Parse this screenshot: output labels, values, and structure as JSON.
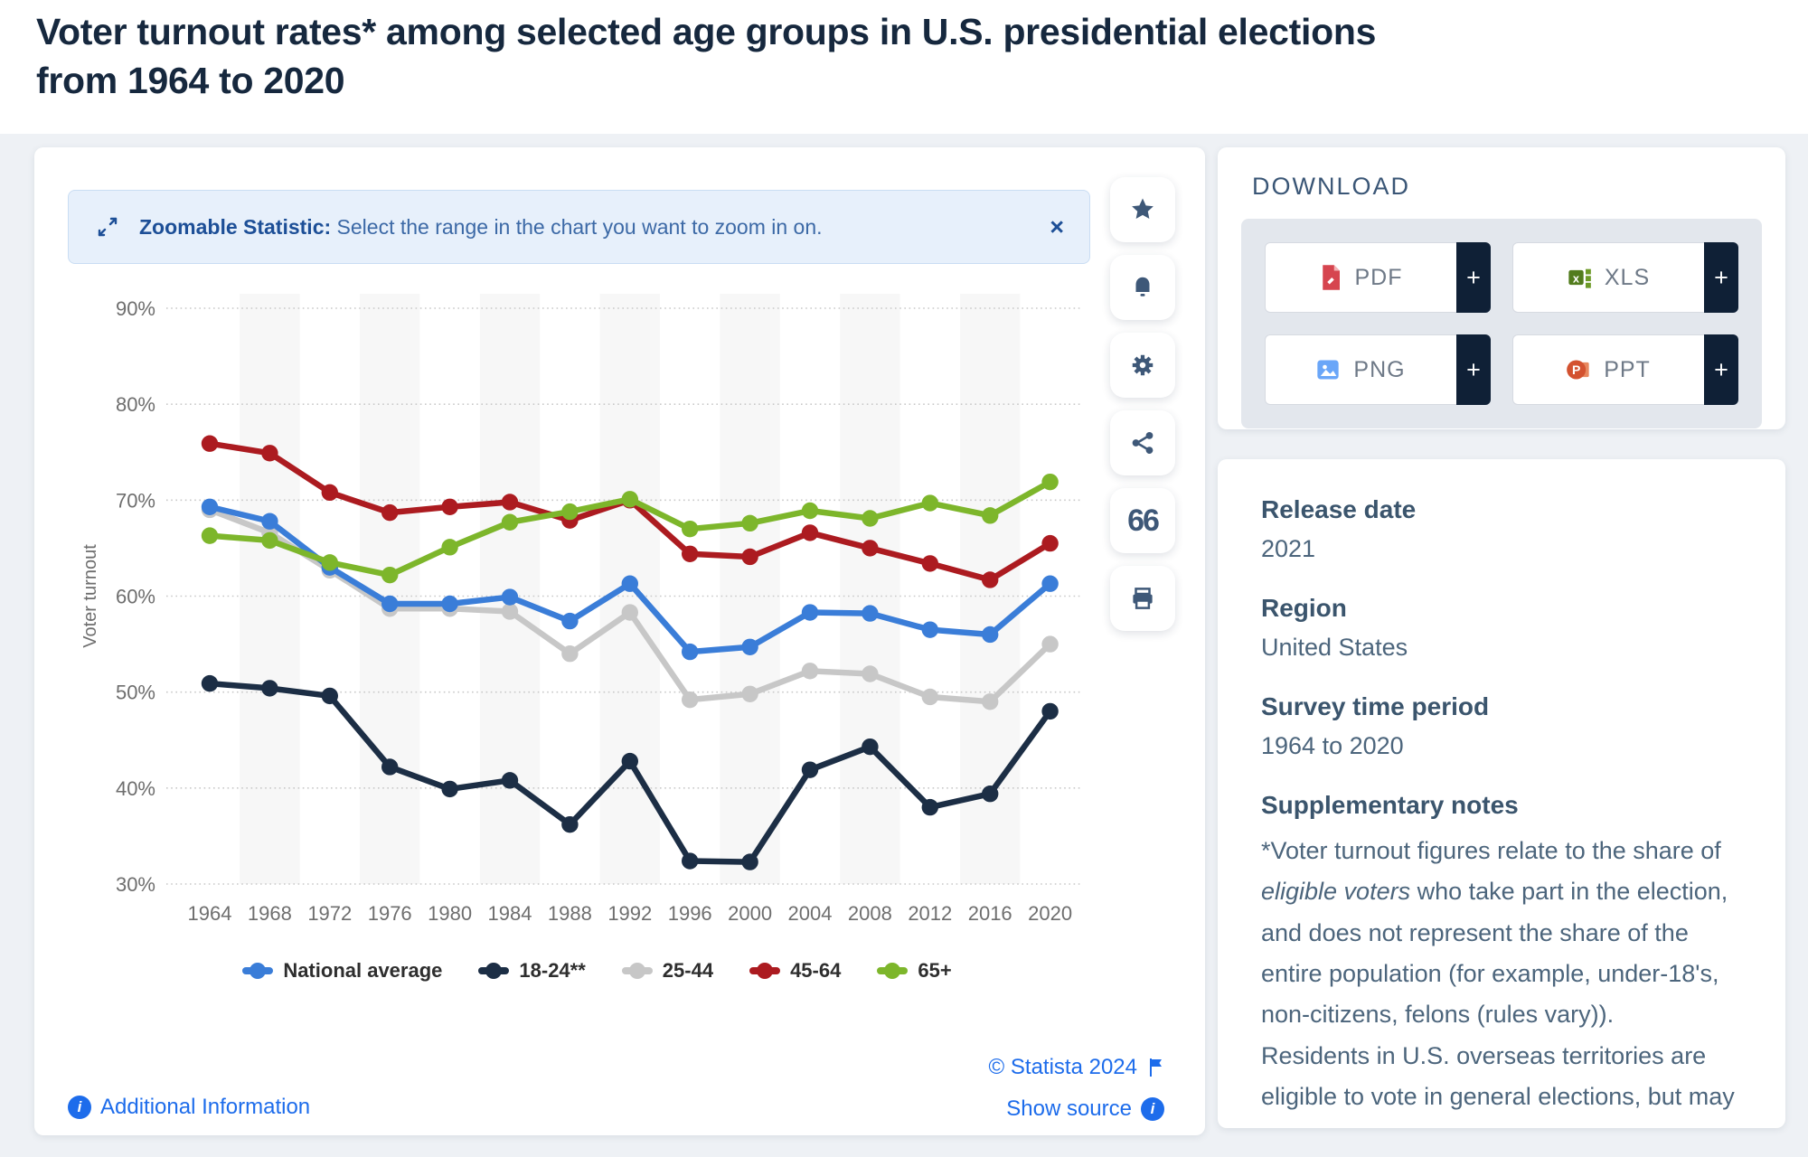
{
  "title": {
    "line1": "Voter turnout rates* among selected age groups in U.S. presidential elections",
    "line2": "from 1964 to 2020"
  },
  "banner": {
    "icon": "zoom-range-icon",
    "bold": "Zoomable Statistic:",
    "text": " Select the range in the chart you want to zoom in on.",
    "close": "×"
  },
  "chart_data": {
    "type": "line",
    "title": "Voter turnout rates among selected age groups in U.S. presidential elections from 1964 to 2020",
    "xlabel": "",
    "ylabel": "Voter turnout",
    "ylim": [
      30,
      90
    ],
    "yticks": [
      90,
      80,
      70,
      60,
      50,
      40,
      30
    ],
    "ytick_suffix": "%",
    "grid": "horizontal-dotted",
    "legend_position": "bottom",
    "shaded_years": [
      1968,
      1976,
      1984,
      1992,
      2000,
      2008,
      2016
    ],
    "categories": [
      1964,
      1968,
      1972,
      1976,
      1980,
      1984,
      1988,
      1992,
      1996,
      2000,
      2004,
      2008,
      2012,
      2016,
      2020
    ],
    "series": [
      {
        "name": "National average",
        "color": "#3a7dd8",
        "values": [
          69.3,
          67.8,
          63.0,
          59.2,
          59.2,
          59.9,
          57.4,
          61.3,
          54.2,
          54.7,
          58.3,
          58.2,
          56.5,
          56.0,
          61.3
        ]
      },
      {
        "name": "18-24**",
        "color": "#1c2e45",
        "values": [
          50.9,
          50.4,
          49.6,
          42.2,
          39.9,
          40.8,
          36.2,
          42.8,
          32.4,
          32.3,
          41.9,
          44.3,
          38.0,
          39.4,
          48.0
        ]
      },
      {
        "name": "25-44",
        "color": "#c7c7c7",
        "values": [
          69.0,
          66.6,
          62.7,
          58.7,
          58.7,
          58.4,
          54.0,
          58.3,
          49.2,
          49.8,
          52.2,
          51.9,
          49.5,
          49.0,
          55.0
        ]
      },
      {
        "name": "45-64",
        "color": "#ac1b20",
        "values": [
          75.9,
          74.9,
          70.8,
          68.7,
          69.3,
          69.8,
          67.9,
          70.0,
          64.4,
          64.1,
          66.6,
          65.0,
          63.4,
          61.7,
          65.5
        ]
      },
      {
        "name": "65+",
        "color": "#7db62b",
        "values": [
          66.3,
          65.8,
          63.5,
          62.2,
          65.1,
          67.7,
          68.8,
          70.1,
          67.0,
          67.6,
          68.9,
          68.1,
          69.7,
          68.4,
          71.9
        ]
      }
    ]
  },
  "toolbar": {
    "buttons": [
      {
        "name": "favorite",
        "icon": "star-icon"
      },
      {
        "name": "alerts",
        "icon": "bell-icon"
      },
      {
        "name": "settings",
        "icon": "gear-icon"
      },
      {
        "name": "share",
        "icon": "share-icon"
      },
      {
        "name": "cite",
        "icon": "quote-icon"
      },
      {
        "name": "print",
        "icon": "printer-icon"
      }
    ]
  },
  "download": {
    "heading": "DOWNLOAD",
    "plus": "+",
    "buttons": [
      {
        "label": "PDF",
        "icon": "pdf-file-icon"
      },
      {
        "label": "XLS",
        "icon": "xls-file-icon"
      },
      {
        "label": "PNG",
        "icon": "png-image-icon"
      },
      {
        "label": "PPT",
        "icon": "ppt-file-icon"
      }
    ]
  },
  "info": {
    "sections": [
      {
        "heading": "Release date",
        "value": "2021"
      },
      {
        "heading": "Region",
        "value": "United States"
      },
      {
        "heading": "Survey time period",
        "value": "1964 to 2020"
      }
    ],
    "notes_heading": "Supplementary notes",
    "notes": {
      "p1a": "*Voter turnout figures relate to the share of ",
      "p1b": "eligible voters",
      "p1c": " who take part in the election, and does not represent the share of the entire population (for example, under-18's, non-citizens, felons (rules vary)).",
      "p2": "Residents in U.S. overseas territories are eligible to vote in general elections, but may"
    }
  },
  "footer": {
    "additional_info": "Additional Information",
    "copyright": "© Statista 2024",
    "show_source": "Show source"
  },
  "colors": {
    "link_blue": "#1d6ceb",
    "banner_bg": "#e7f0fb",
    "banner_text_bold": "#1d4f97",
    "banner_text": "#3c69a6",
    "title_navy": "#16283e",
    "plus_strip": "#0f2036",
    "shaded_band": "#f7f7f7"
  }
}
